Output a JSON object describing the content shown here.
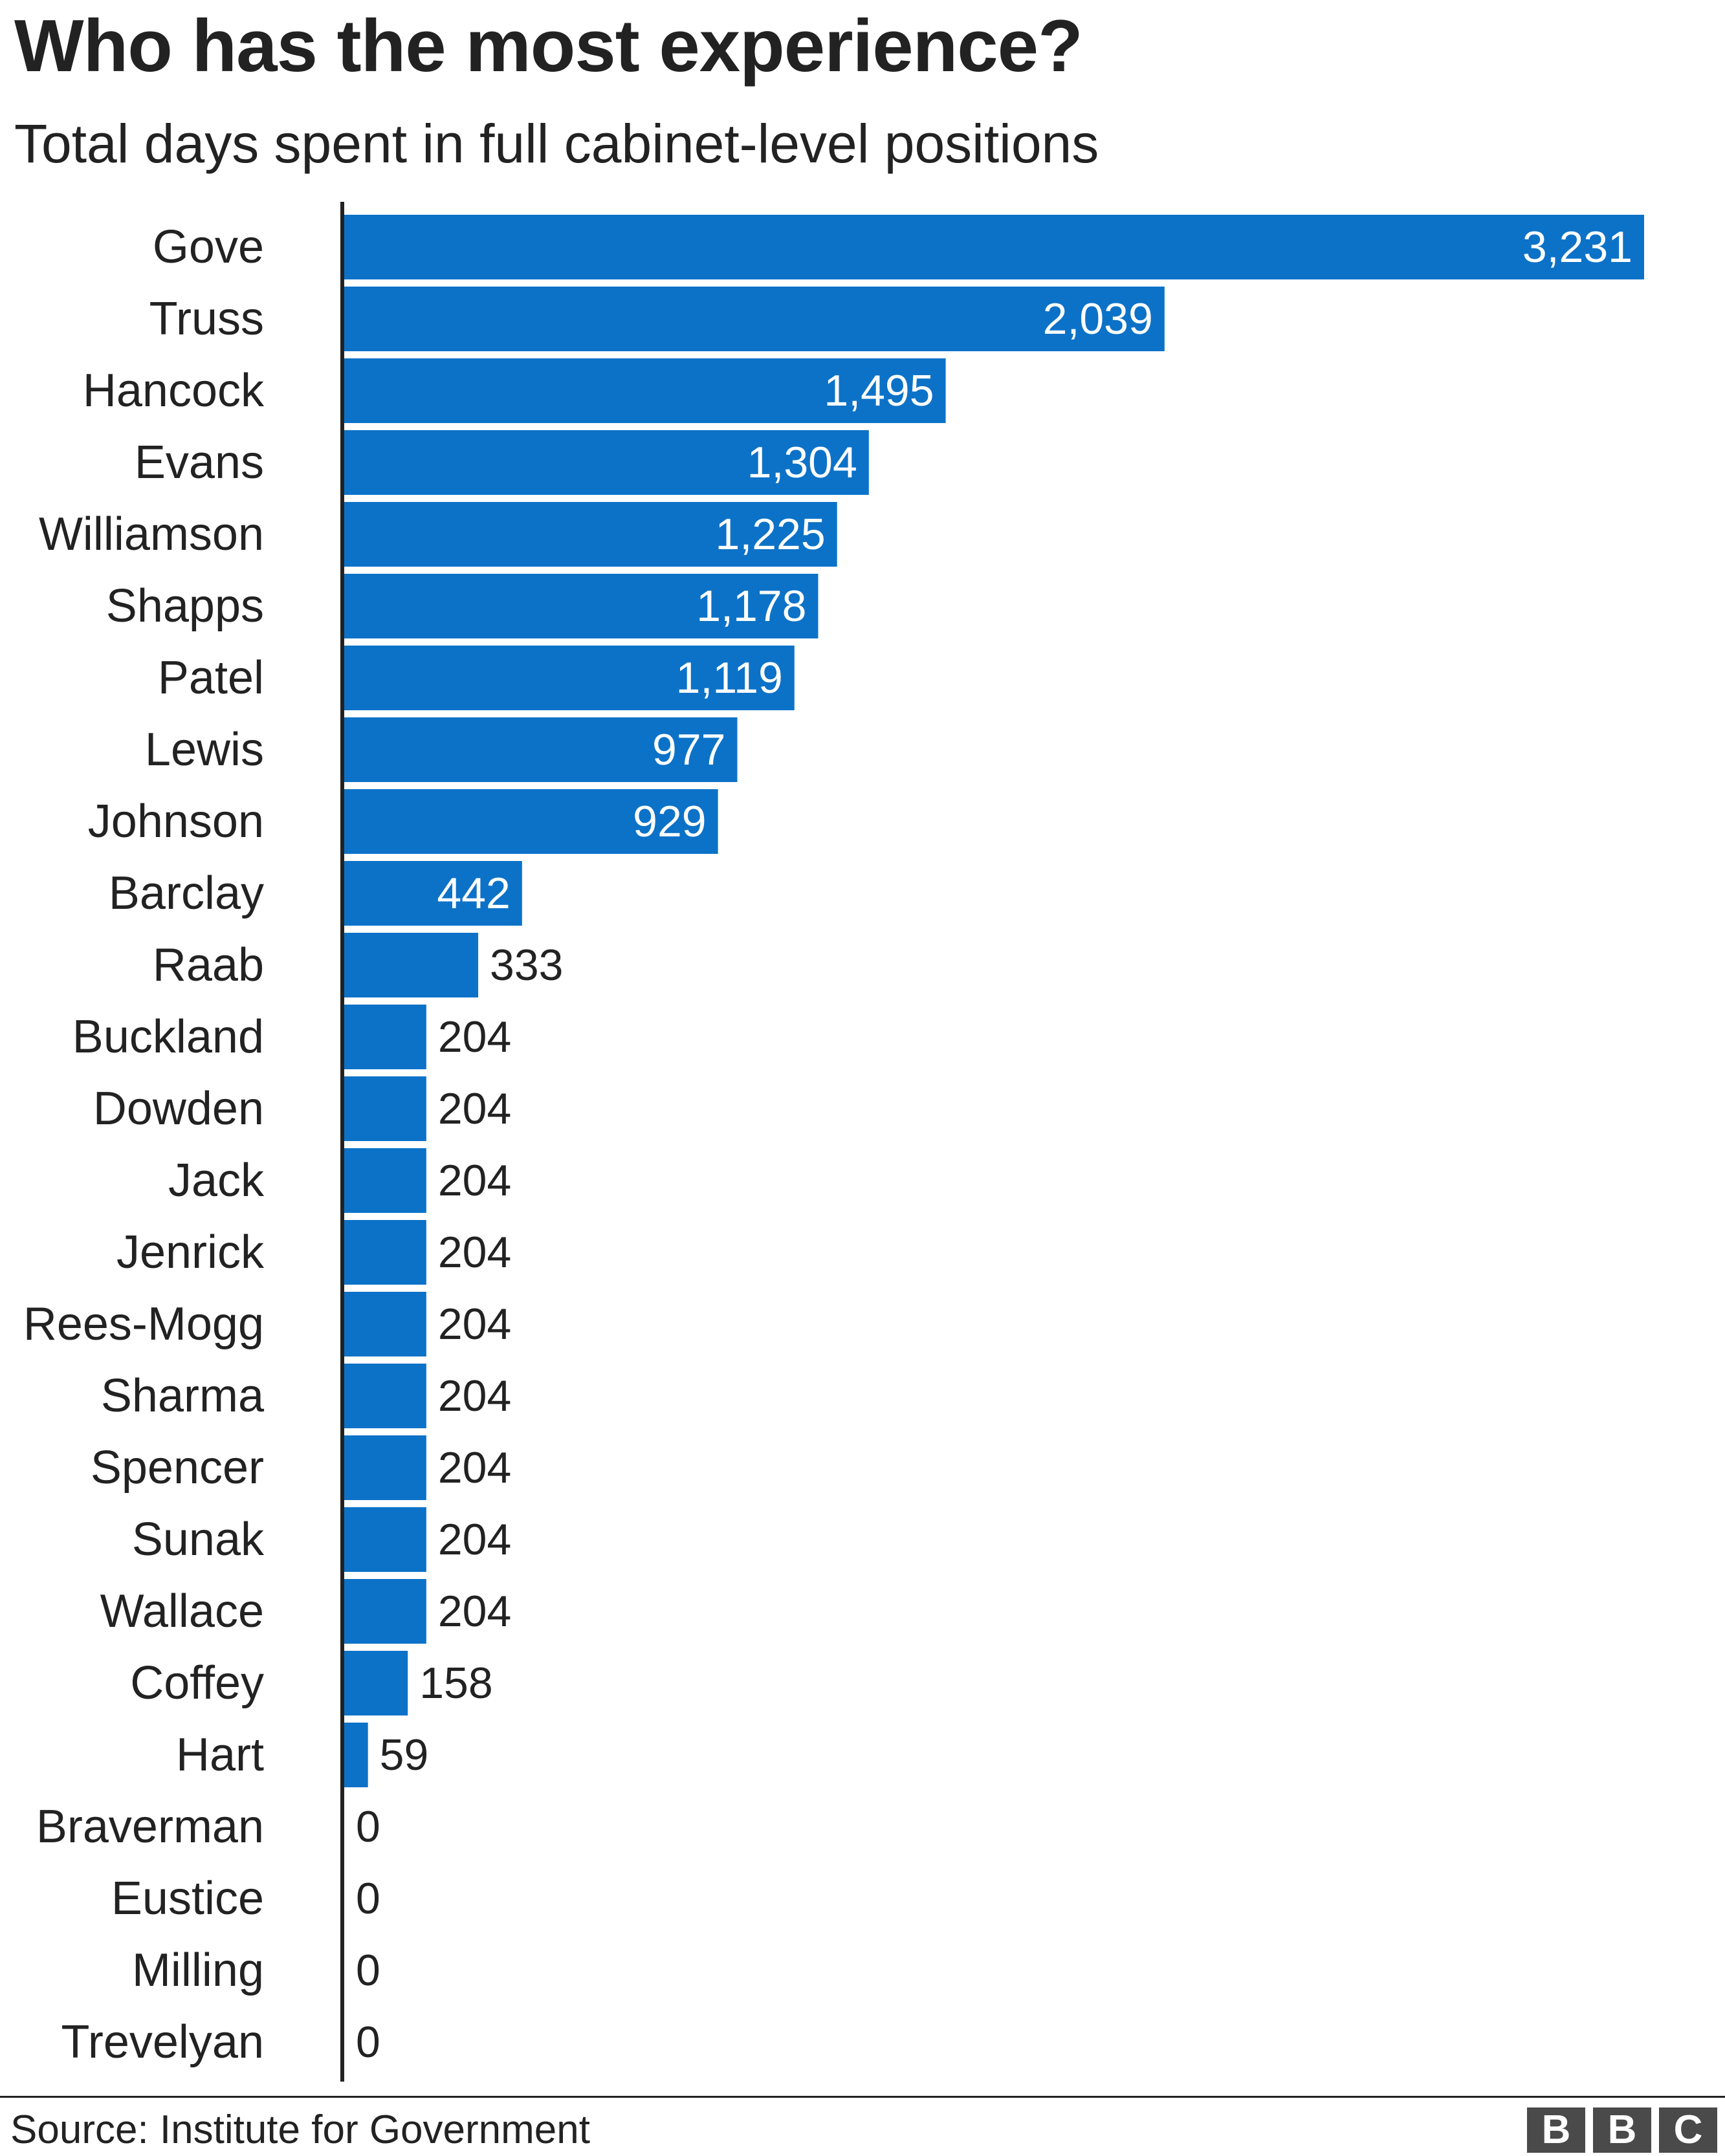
{
  "title": "Who has the most experience?",
  "subtitle": "Total days spent in full cabinet-level positions",
  "source": "Source: Institute for Government",
  "logo": [
    "B",
    "B",
    "C"
  ],
  "colors": {
    "bar": "#0c72c8",
    "label_inside": "#ffffff",
    "label_outside": "#222222",
    "axis": "#222222"
  },
  "chart_data": {
    "type": "bar",
    "orientation": "horizontal",
    "title": "Who has the most experience?",
    "subtitle": "Total days spent in full cabinet-level positions",
    "categories": [
      "Gove",
      "Truss",
      "Hancock",
      "Evans",
      "Williamson",
      "Shapps",
      "Patel",
      "Lewis",
      "Johnson",
      "Barclay",
      "Raab",
      "Buckland",
      "Dowden",
      "Jack",
      "Jenrick",
      "Rees-Mogg",
      "Sharma",
      "Spencer",
      "Sunak",
      "Wallace",
      "Coffey",
      "Hart",
      "Braverman",
      "Eustice",
      "Milling",
      "Trevelyan"
    ],
    "values": [
      3231,
      2039,
      1495,
      1304,
      1225,
      1178,
      1119,
      977,
      929,
      442,
      333,
      204,
      204,
      204,
      204,
      204,
      204,
      204,
      204,
      204,
      158,
      59,
      0,
      0,
      0,
      0
    ],
    "value_labels": [
      "3,231",
      "2,039",
      "1,495",
      "1,304",
      "1,225",
      "1,178",
      "1,119",
      "977",
      "929",
      "442",
      "333",
      "204",
      "204",
      "204",
      "204",
      "204",
      "204",
      "204",
      "204",
      "204",
      "158",
      "59",
      "0",
      "0",
      "0",
      "0"
    ],
    "xlim": [
      0,
      3231
    ],
    "grid": false,
    "legend": "none"
  }
}
